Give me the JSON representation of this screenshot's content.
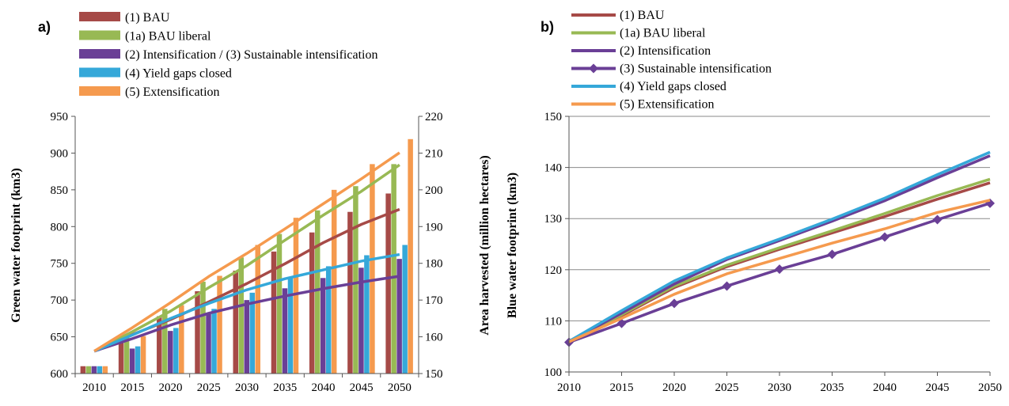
{
  "colors": {
    "BAU": "#a64a47",
    "BAU_liberal": "#98b954",
    "intens": "#6a3f96",
    "yield": "#35a8d9",
    "extens": "#f59a4e"
  },
  "chart_data": [
    {
      "id": "a",
      "panel_label": "a)",
      "type": "bar+line",
      "categories": [
        "2010",
        "2015",
        "2020",
        "2025",
        "2030",
        "2035",
        "2040",
        "2045",
        "2050"
      ],
      "ylabel": "Green water footprint (km3)",
      "y2label": "Area harvested (million hectares)",
      "ylim": [
        600,
        950
      ],
      "yticks": [
        600,
        650,
        700,
        750,
        800,
        850,
        900,
        950
      ],
      "y2lim": [
        150,
        220
      ],
      "y2ticks": [
        150,
        160,
        170,
        180,
        190,
        200,
        210,
        220
      ],
      "legend": [
        "(1) BAU",
        "(1a) BAU liberal",
        "(2) Intensification / (3) Sustainable intensification",
        "(4) Yield gaps closed",
        "(5) Extensification"
      ],
      "bar_series": [
        {
          "name": "(1) BAU",
          "color_key": "BAU",
          "values": [
            610,
            648,
            678,
            712,
            740,
            766,
            792,
            820,
            845
          ]
        },
        {
          "name": "(1a) BAU liberal",
          "color_key": "BAU_liberal",
          "values": [
            610,
            652,
            688,
            725,
            758,
            790,
            822,
            855,
            885
          ]
        },
        {
          "name": "(2) Intensification / (3) Sustainable intensification",
          "color_key": "intens",
          "values": [
            610,
            634,
            658,
            681,
            700,
            716,
            730,
            744,
            756
          ]
        },
        {
          "name": "(4) Yield gaps closed",
          "color_key": "yield",
          "values": [
            610,
            637,
            662,
            688,
            710,
            730,
            746,
            761,
            775
          ]
        },
        {
          "name": "(5) Extensification",
          "color_key": "extens",
          "values": [
            610,
            651,
            693,
            733,
            775,
            812,
            850,
            885,
            919
          ]
        }
      ],
      "line_series": [
        {
          "name": "(1) BAU",
          "color_key": "BAU",
          "values": [
            156.1,
            160.6,
            164.7,
            169.5,
            174.5,
            179.9,
            185.6,
            190.6,
            194.7
          ]
        },
        {
          "name": "(1a) BAU liberal",
          "color_key": "BAU_liberal",
          "values": [
            156.1,
            161.4,
            167.0,
            173.4,
            179.4,
            186.3,
            193.1,
            199.6,
            206.8
          ]
        },
        {
          "name": "(2) Intensification / (3) Sustainable intensification",
          "color_key": "intens",
          "values": [
            156.1,
            159.5,
            163.2,
            166.4,
            168.9,
            171.1,
            173.1,
            174.9,
            176.5
          ]
        },
        {
          "name": "(4) Yield gaps closed",
          "color_key": "yield",
          "values": [
            156.1,
            160.5,
            165.0,
            169.1,
            172.8,
            175.8,
            178.2,
            180.6,
            182.4
          ]
        },
        {
          "name": "(5) Extensification",
          "color_key": "extens",
          "values": [
            156.1,
            162.5,
            169.3,
            176.4,
            182.7,
            189.4,
            196.2,
            203.0,
            210.1
          ]
        }
      ]
    },
    {
      "id": "b",
      "panel_label": "b)",
      "type": "line",
      "x": [
        "2010",
        "2015",
        "2020",
        "2025",
        "2030",
        "2035",
        "2040",
        "2045",
        "2050"
      ],
      "ylabel": "Blue water footprint (km3)",
      "ylim": [
        100,
        150
      ],
      "yticks": [
        100,
        110,
        120,
        130,
        140,
        150
      ],
      "grid": true,
      "legend": [
        "(1) BAU",
        "(1a) BAU liberal",
        "(2) Intensification",
        "(3) Sustainable intensification",
        "(4) Yield gaps closed",
        "(5) Extensification"
      ],
      "series": [
        {
          "name": "(1) BAU",
          "color_key": "BAU",
          "values": [
            106,
            111,
            116.5,
            120.6,
            124,
            127.2,
            130.4,
            133.8,
            137
          ]
        },
        {
          "name": "(1a) BAU liberal",
          "color_key": "BAU_liberal",
          "values": [
            106,
            111.2,
            116.8,
            120.9,
            124.3,
            127.6,
            131,
            134.5,
            137.7
          ]
        },
        {
          "name": "(2) Intensification",
          "color_key": "intens",
          "values": [
            106,
            111.5,
            117.2,
            122,
            125.7,
            129.5,
            133.5,
            138,
            142.3
          ]
        },
        {
          "name": "(3) Sustainable intensification",
          "color_key": "intens",
          "marker": "diamond",
          "values": [
            105.8,
            109.5,
            113.4,
            116.8,
            120.1,
            123,
            126.4,
            129.8,
            133
          ]
        },
        {
          "name": "(4) Yield gaps closed",
          "color_key": "yield",
          "values": [
            106,
            112,
            117.8,
            122.3,
            126,
            129.9,
            134,
            138.6,
            143
          ]
        },
        {
          "name": "(5) Extensification",
          "color_key": "extens",
          "values": [
            105.9,
            110.5,
            115.2,
            119.2,
            122.2,
            125.2,
            128,
            131.2,
            133.6
          ]
        }
      ]
    }
  ]
}
